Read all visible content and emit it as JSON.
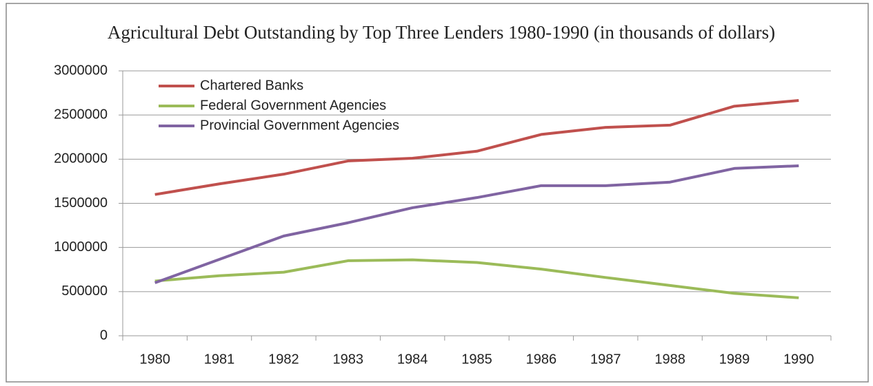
{
  "chart_data": {
    "type": "line",
    "title": "Agricultural  Debt Outstanding by Top Three Lenders 1980-1990  (in thousands of dollars)",
    "categories": [
      "1980",
      "1981",
      "1982",
      "1983",
      "1984",
      "1985",
      "1986",
      "1987",
      "1988",
      "1989",
      "1990"
    ],
    "series": [
      {
        "name": "Chartered Banks",
        "color": "#c0504d",
        "values": [
          1600000,
          1720000,
          1830000,
          1980000,
          2010000,
          2090000,
          2280000,
          2360000,
          2385000,
          2600000,
          2665000
        ]
      },
      {
        "name": "Federal Government Agencies",
        "color": "#9bbb59",
        "values": [
          620000,
          680000,
          720000,
          850000,
          860000,
          830000,
          755000,
          660000,
          570000,
          480000,
          430000
        ]
      },
      {
        "name": "Provincial Government Agencies",
        "color": "#8064a2",
        "values": [
          600000,
          865000,
          1130000,
          1280000,
          1450000,
          1565000,
          1700000,
          1700000,
          1740000,
          1895000,
          1925000
        ]
      }
    ],
    "ylim": [
      0,
      3000000
    ],
    "yticks": [
      0,
      500000,
      1000000,
      1500000,
      2000000,
      2500000,
      3000000
    ],
    "grid": true,
    "legend": "top-left"
  }
}
